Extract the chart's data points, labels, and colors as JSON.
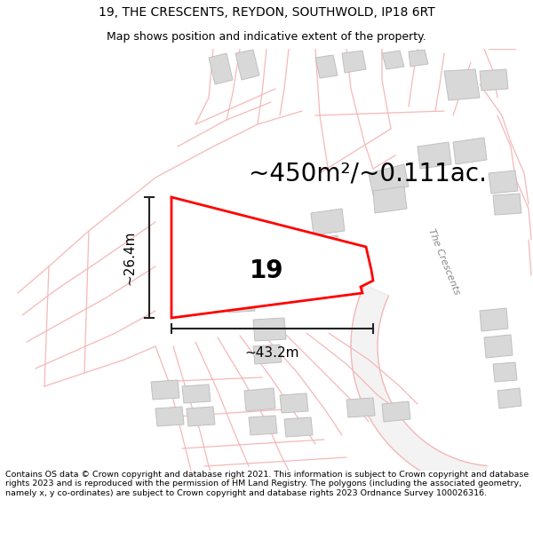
{
  "title_line1": "19, THE CRESCENTS, REYDON, SOUTHWOLD, IP18 6RT",
  "title_line2": "Map shows position and indicative extent of the property.",
  "area_text": "~450m²/~0.111ac.",
  "label_width": "~43.2m",
  "label_height": "~26.4m",
  "property_number": "19",
  "footer_text": "Contains OS data © Crown copyright and database right 2021. This information is subject to Crown copyright and database rights 2023 and is reproduced with the permission of HM Land Registry. The polygons (including the associated geometry, namely x, y co-ordinates) are subject to Crown copyright and database rights 2023 Ordnance Survey 100026316.",
  "bg_color": "#ffffff",
  "plot_color": "#ff0000",
  "building_color": "#d8d8d8",
  "building_edge": "#c0c0c0",
  "road_line_color": "#f5b8b8",
  "road_fill_color": "#fce8e8",
  "road_label_color": "#888888",
  "road_centerline_color": "#e8a0a0",
  "dim_color": "#222222",
  "title_color": "#000000",
  "footer_color": "#000000",
  "map_bg": "#ffffff",
  "title_fontsize": 10,
  "subtitle_fontsize": 9,
  "area_fontsize": 20,
  "dim_fontsize": 11,
  "prop_num_fontsize": 20,
  "footer_fontsize": 6.8
}
